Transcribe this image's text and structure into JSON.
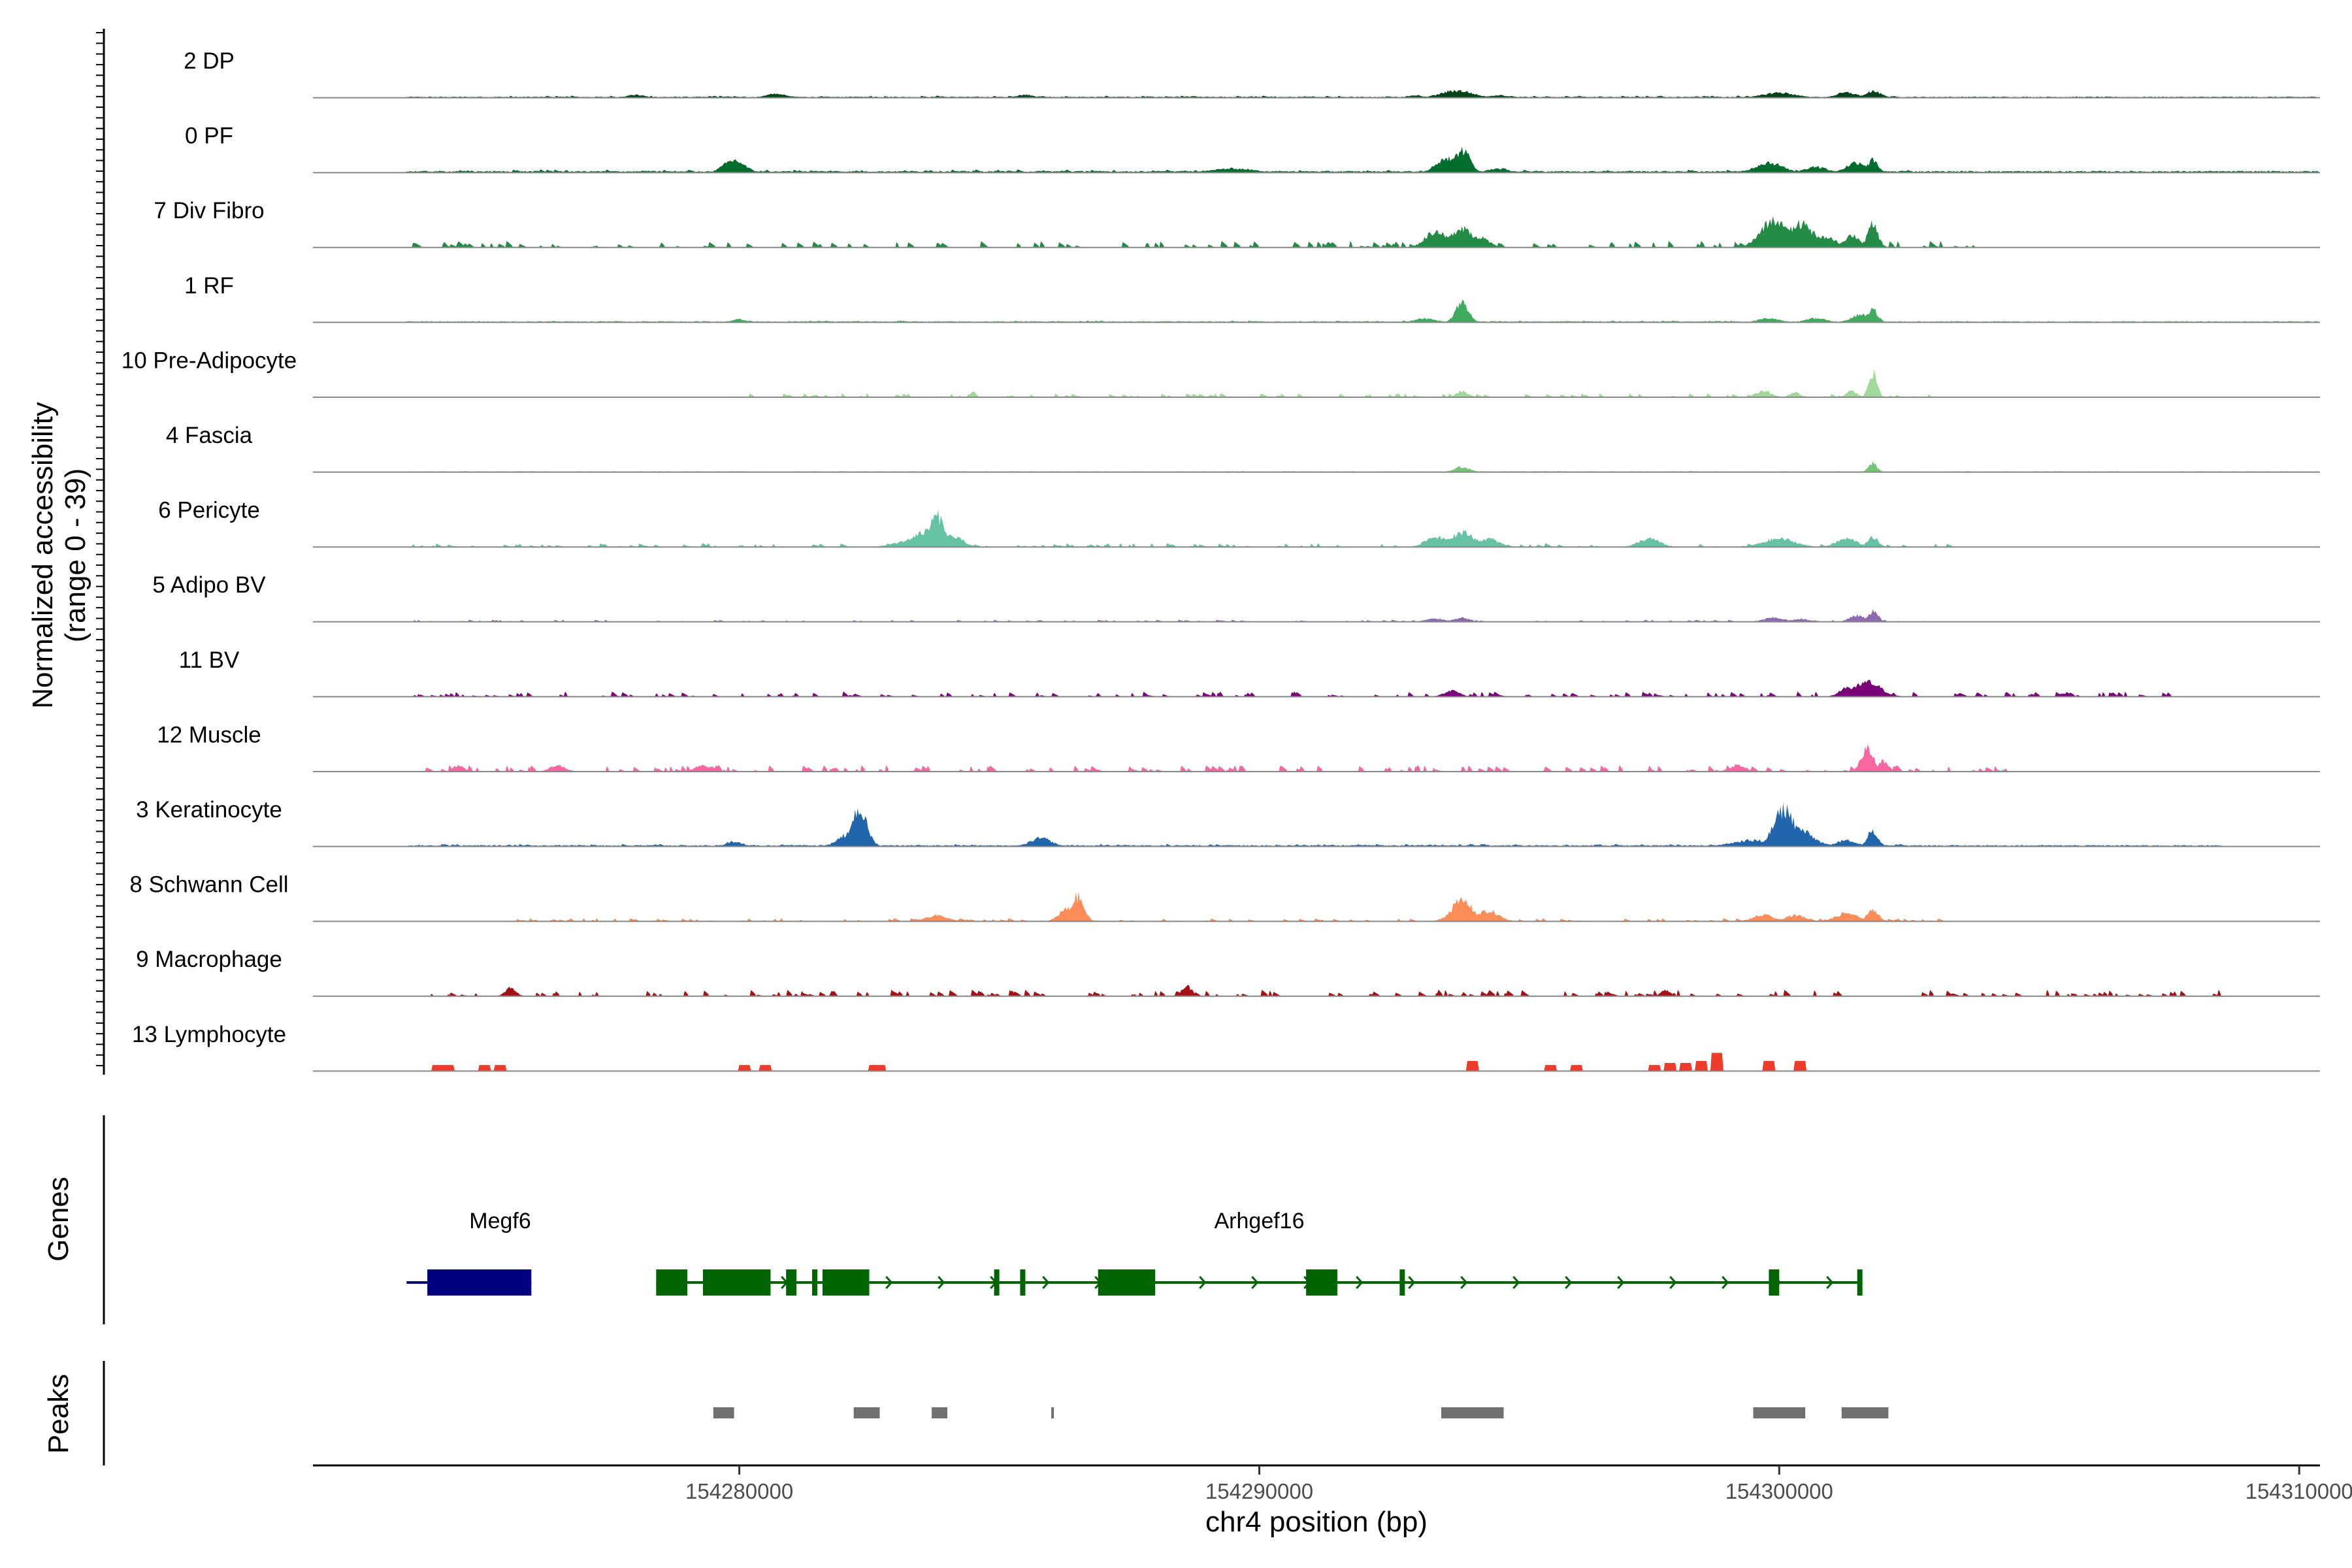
{
  "chart_data": {
    "type": "area",
    "ylabel_line1": "Normalized accessibility",
    "ylabel_line2": "(range 0 - 39)",
    "ylim": [
      0,
      39
    ],
    "xlabel": "chr4 position (bp)",
    "xlim": [
      154271800,
      154310400
    ],
    "xticks": [
      154280000,
      154290000,
      154300000,
      154310000
    ],
    "xtick_labels": [
      "154280000",
      "154290000",
      "154300000",
      "154310000"
    ],
    "tracks": [
      {
        "name": "2 DP",
        "color": "#00441B",
        "baseline": [
          [
            154273600,
            154312000,
            0.4
          ]
        ],
        "noise": [
          [
            154274500,
            154302500,
            0.8
          ]
        ],
        "peaks": [
          [
            154278000,
            1.5,
            150
          ],
          [
            154280700,
            1.8,
            200
          ],
          [
            154285500,
            1.5,
            150
          ],
          [
            154293000,
            1.2,
            150
          ],
          [
            154293800,
            3.5,
            300
          ],
          [
            154294600,
            1.2,
            200
          ],
          [
            154300000,
            2.5,
            300
          ],
          [
            154301300,
            2.5,
            200
          ],
          [
            154301800,
            3.2,
            150
          ]
        ]
      },
      {
        "name": "0 PF",
        "color": "#006D2C",
        "baseline": [
          [
            154273600,
            154312000,
            0.6
          ]
        ],
        "noise": [
          [
            154274500,
            154302500,
            1.2
          ]
        ],
        "peaks": [
          [
            154279900,
            6,
            200
          ],
          [
            154289500,
            2,
            400
          ],
          [
            154293600,
            7,
            200
          ],
          [
            154293900,
            11,
            150
          ],
          [
            154294600,
            2,
            200
          ],
          [
            154299800,
            5,
            250
          ],
          [
            154300700,
            3,
            200
          ],
          [
            154301500,
            5,
            200
          ],
          [
            154301800,
            6,
            100
          ]
        ]
      },
      {
        "name": "7 Div Fibro",
        "color": "#238B45",
        "baseline": [],
        "noise": [
          [
            154273700,
            154304000,
            2.5
          ]
        ],
        "peaks": [
          [
            154293400,
            8,
            200
          ],
          [
            154293900,
            10,
            200
          ],
          [
            154294200,
            5,
            200
          ],
          [
            154299900,
            13,
            250
          ],
          [
            154300400,
            12,
            250
          ],
          [
            154300900,
            5,
            200
          ],
          [
            154301400,
            6,
            150
          ],
          [
            154301800,
            11,
            100
          ]
        ]
      },
      {
        "name": "1 RF",
        "color": "#41AB5D",
        "baseline": [
          [
            154273600,
            154312000,
            0.4
          ]
        ],
        "noise": [
          [
            154274500,
            154302500,
            0.7
          ]
        ],
        "peaks": [
          [
            154280000,
            1.5,
            150
          ],
          [
            154293200,
            2,
            200
          ],
          [
            154293900,
            10,
            120
          ],
          [
            154299800,
            2,
            200
          ],
          [
            154300700,
            2,
            200
          ],
          [
            154301600,
            4,
            200
          ],
          [
            154301800,
            6,
            100
          ]
        ]
      },
      {
        "name": "10 Pre-Adipocyte",
        "color": "#A1D99B",
        "baseline": [],
        "noise": [
          [
            154279500,
            154303000,
            1.5
          ]
        ],
        "peaks": [
          [
            154284500,
            2.5,
            50
          ],
          [
            154293900,
            3,
            100
          ],
          [
            154299700,
            3,
            150
          ],
          [
            154300300,
            2.5,
            100
          ],
          [
            154301400,
            3,
            100
          ],
          [
            154301800,
            12,
            80
          ]
        ]
      },
      {
        "name": "4 Fascia",
        "color": "#74C476",
        "baseline": [
          [
            154273600,
            154312000,
            0.3
          ]
        ],
        "noise": [
          [
            154274500,
            154302500,
            0.4
          ]
        ],
        "peaks": [
          [
            154293900,
            2.5,
            150
          ],
          [
            154301800,
            4.5,
            80
          ]
        ]
      },
      {
        "name": "6 Pericyte",
        "color": "#66C2A4",
        "baseline": [],
        "noise": [
          [
            154273700,
            154303500,
            1.5
          ]
        ],
        "peaks": [
          [
            154283300,
            3,
            300
          ],
          [
            154283800,
            15,
            150
          ],
          [
            154283700,
            8,
            350
          ],
          [
            154284100,
            5,
            200
          ],
          [
            154293400,
            5,
            200
          ],
          [
            154293900,
            7,
            250
          ],
          [
            154294400,
            4,
            200
          ],
          [
            154297500,
            4,
            200
          ],
          [
            154300000,
            4,
            300
          ],
          [
            154301300,
            4,
            200
          ],
          [
            154301800,
            5,
            100
          ]
        ]
      },
      {
        "name": "5 Adipo BV",
        "color": "#8C6BB1",
        "baseline": [],
        "noise": [
          [
            154273700,
            154303000,
            0.8
          ]
        ],
        "peaks": [
          [
            154293400,
            1.5,
            200
          ],
          [
            154293900,
            2,
            150
          ],
          [
            154299900,
            2,
            200
          ],
          [
            154300400,
            1.5,
            150
          ],
          [
            154301500,
            3,
            150
          ],
          [
            154301800,
            5,
            100
          ]
        ]
      },
      {
        "name": "11 BV",
        "color": "#7A0177",
        "baseline": [],
        "noise": [
          [
            154273700,
            154307500,
            2
          ]
        ],
        "peaks": [
          [
            154293700,
            3,
            150
          ],
          [
            154301300,
            4,
            150
          ],
          [
            154301700,
            7,
            250
          ]
        ]
      },
      {
        "name": "12 Muscle",
        "color": "#F768A1",
        "baseline": [],
        "noise": [
          [
            154273700,
            154304500,
            2.5
          ]
        ],
        "peaks": [
          [
            154274600,
            3,
            100
          ],
          [
            154276500,
            3,
            150
          ],
          [
            154279300,
            3,
            150
          ],
          [
            154299200,
            3,
            150
          ],
          [
            154301700,
            11,
            120
          ],
          [
            154302000,
            5,
            100
          ]
        ]
      },
      {
        "name": "3 Keratinocyte",
        "color": "#2166AC",
        "baseline": [
          [
            154273600,
            154308500,
            0.5
          ]
        ],
        "noise": [
          [
            154274000,
            154302500,
            1.0
          ]
        ],
        "peaks": [
          [
            154279900,
            2.5,
            150
          ],
          [
            154282300,
            18,
            150
          ],
          [
            154282100,
            6,
            200
          ],
          [
            154285800,
            4,
            200
          ],
          [
            154299500,
            3,
            400
          ],
          [
            154300100,
            18,
            200
          ],
          [
            154300300,
            9,
            300
          ],
          [
            154301300,
            3,
            200
          ],
          [
            154301800,
            8,
            100
          ]
        ]
      },
      {
        "name": "8 Schwann Cell",
        "color": "#FC8D59",
        "baseline": [],
        "noise": [
          [
            154275500,
            154303200,
            1.2
          ]
        ],
        "peaks": [
          [
            154283800,
            3,
            200
          ],
          [
            154286300,
            6,
            150
          ],
          [
            154286500,
            12,
            120
          ],
          [
            154293900,
            10,
            200
          ],
          [
            154294400,
            5,
            200
          ],
          [
            154299700,
            3,
            200
          ],
          [
            154300300,
            3,
            200
          ],
          [
            154301300,
            4,
            200
          ],
          [
            154301800,
            6,
            100
          ]
        ]
      },
      {
        "name": "9 Macrophage",
        "color": "#A50F15",
        "baseline": [],
        "noise": [
          [
            154274000,
            154308500,
            2.5
          ]
        ],
        "peaks": [
          [
            154275600,
            4,
            100
          ],
          [
            154288600,
            5,
            100
          ],
          [
            154297800,
            3,
            80
          ]
        ]
      },
      {
        "name": "13 Lymphocyte",
        "color": "#EF3B2C",
        "baseline": [],
        "blocks": [
          [
            154274100,
            154274500,
            3
          ],
          [
            154275000,
            154275200,
            3
          ],
          [
            154275300,
            154275500,
            3
          ],
          [
            154280000,
            154280200,
            3
          ],
          [
            154280400,
            154280600,
            3
          ],
          [
            154282500,
            154282800,
            3
          ],
          [
            154294000,
            154294200,
            5
          ],
          [
            154295500,
            154295700,
            3
          ],
          [
            154296000,
            154296200,
            3
          ],
          [
            154297500,
            154297700,
            3
          ],
          [
            154297800,
            154298000,
            4
          ],
          [
            154298100,
            154298300,
            4
          ],
          [
            154298400,
            154298600,
            5
          ],
          [
            154298700,
            154298900,
            9
          ],
          [
            154299700,
            154299900,
            5
          ],
          [
            154300300,
            154300500,
            5
          ]
        ]
      }
    ]
  },
  "genes_panel": {
    "title": "Genes",
    "genes": [
      {
        "name": "Megf6",
        "color": "#000080",
        "start": 154273600,
        "end": 154276000,
        "strand": "+",
        "label_pos": 154275400,
        "exons": [
          [
            154274000,
            154276000
          ]
        ]
      },
      {
        "name": "Arhgef16",
        "color": "#006400",
        "start": 154278400,
        "end": 154301600,
        "strand": "-",
        "label_pos": 154290000,
        "exons": [
          [
            154278400,
            154279000
          ],
          [
            154279300,
            154280600
          ],
          [
            154280900,
            154281100
          ],
          [
            154281400,
            154281500
          ],
          [
            154281600,
            154282500
          ],
          [
            154284900,
            154285000
          ],
          [
            154285400,
            154285500
          ],
          [
            154286900,
            154288000
          ],
          [
            154290900,
            154291500
          ],
          [
            154292700,
            154292800
          ],
          [
            154299800,
            154300000
          ],
          [
            154301500,
            154301600
          ]
        ]
      }
    ]
  },
  "peaks_panel": {
    "title": "Peaks",
    "color": "#707070",
    "peaks": [
      [
        154279500,
        154279900
      ],
      [
        154282200,
        154282700
      ],
      [
        154283700,
        154284000
      ],
      [
        154286000,
        154286050
      ],
      [
        154293500,
        154294700
      ],
      [
        154299500,
        154300500
      ],
      [
        154301200,
        154302100
      ]
    ]
  }
}
